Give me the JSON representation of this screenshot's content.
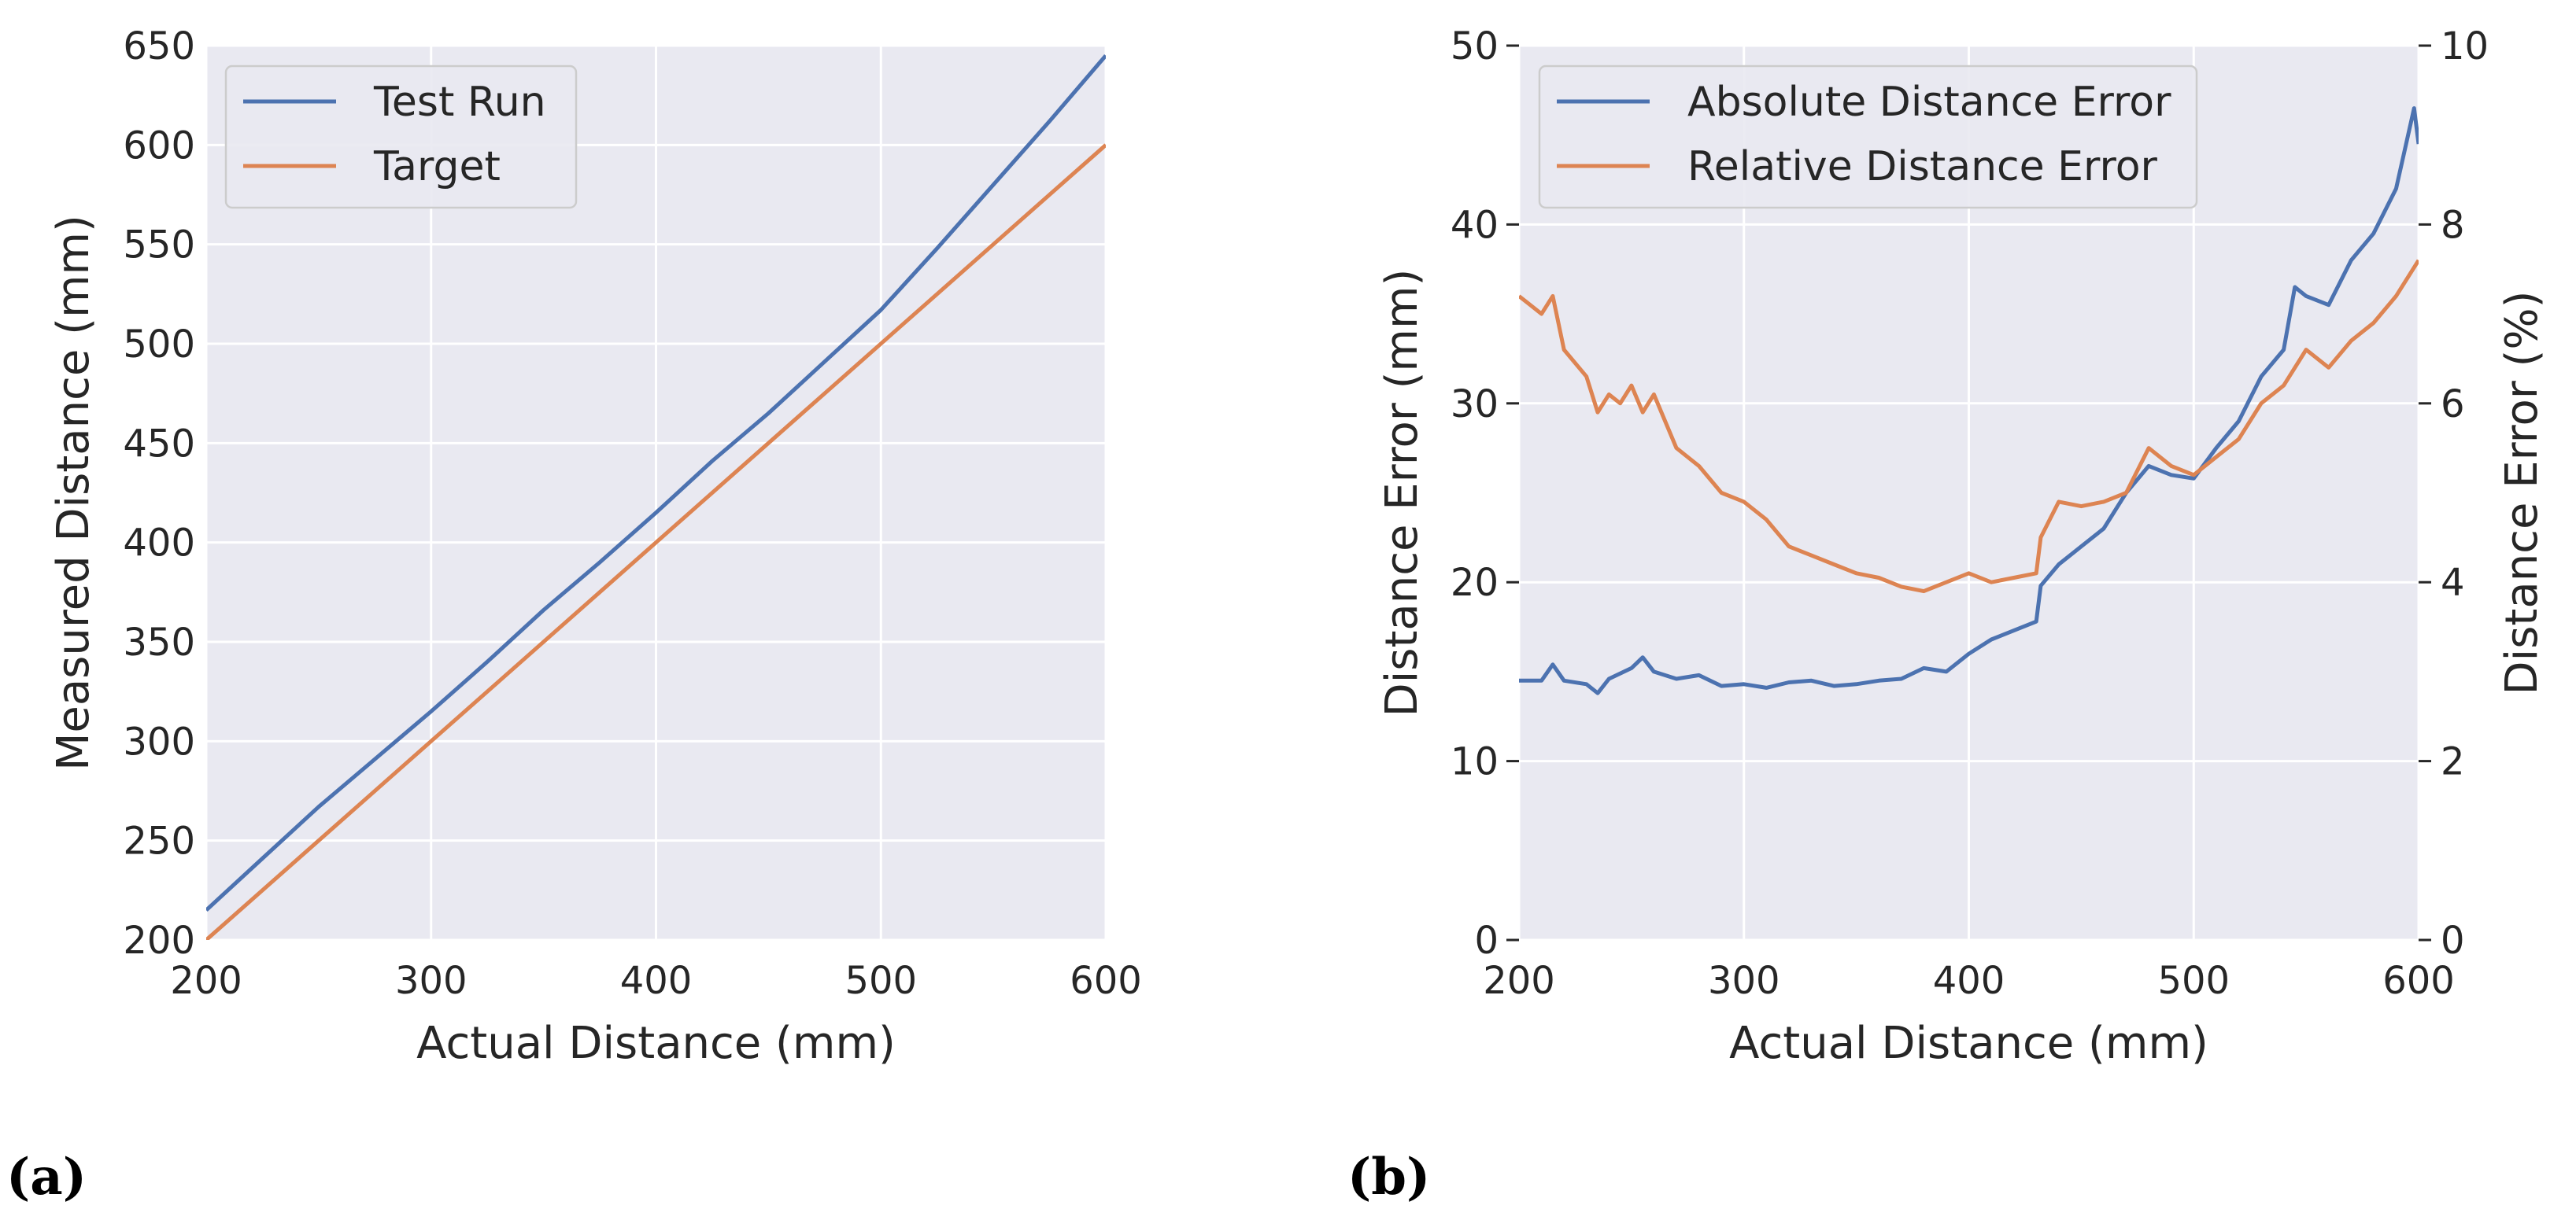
{
  "colors": {
    "background": "#e9e9f1",
    "grid": "#ffffff",
    "blue": "#4c72b0",
    "orange": "#dd8452"
  },
  "panel_labels": {
    "a": "(a)",
    "b": "(b)"
  },
  "chart_data": [
    {
      "id": "a",
      "type": "line",
      "xlabel": "Actual Distance (mm)",
      "ylabel": "Measured Distance (mm)",
      "xlim": [
        200,
        600
      ],
      "ylim": [
        200,
        650
      ],
      "xticks": [
        "200",
        "300",
        "400",
        "500",
        "600"
      ],
      "yticks": [
        "200",
        "250",
        "300",
        "350",
        "400",
        "450",
        "500",
        "550",
        "600",
        "650"
      ],
      "legend_position": "upper-left",
      "series": [
        {
          "name": "Test Run",
          "color": "#4c72b0",
          "axis": "left",
          "x": [
            200,
            225,
            250,
            275,
            300,
            325,
            350,
            375,
            400,
            425,
            450,
            475,
            500,
            525,
            550,
            575,
            600
          ],
          "y": [
            215,
            241,
            267,
            291,
            315,
            340,
            366,
            390,
            415,
            441,
            465,
            491,
            517,
            548,
            580,
            612,
            645
          ]
        },
        {
          "name": "Target",
          "color": "#dd8452",
          "axis": "left",
          "x": [
            200,
            600
          ],
          "y": [
            200,
            600
          ]
        }
      ]
    },
    {
      "id": "b",
      "type": "line",
      "xlabel": "Actual Distance (mm)",
      "ylabel": "Distance Error (mm)",
      "ylabel_right": "Distance Error (%)",
      "xlim": [
        200,
        600
      ],
      "ylim": [
        0,
        50
      ],
      "ylim_right": [
        0,
        10
      ],
      "xticks": [
        "200",
        "300",
        "400",
        "500",
        "600"
      ],
      "yticks": [
        "0",
        "10",
        "20",
        "30",
        "40",
        "50"
      ],
      "yticks_right": [
        "0",
        "2",
        "4",
        "6",
        "8",
        "10"
      ],
      "legend_position": "upper-left",
      "series": [
        {
          "name": "Absolute Distance Error",
          "color": "#4c72b0",
          "axis": "left",
          "x": [
            200,
            210,
            215,
            220,
            230,
            235,
            240,
            250,
            255,
            260,
            270,
            280,
            290,
            300,
            310,
            320,
            330,
            340,
            350,
            360,
            370,
            380,
            390,
            400,
            410,
            420,
            430,
            432,
            440,
            450,
            460,
            470,
            480,
            490,
            500,
            510,
            520,
            530,
            540,
            545,
            550,
            560,
            570,
            580,
            590,
            598,
            600
          ],
          "y": [
            14.5,
            14.5,
            15.4,
            14.5,
            14.3,
            13.8,
            14.6,
            15.2,
            15.8,
            15.0,
            14.6,
            14.8,
            14.2,
            14.3,
            14.1,
            14.4,
            14.5,
            14.2,
            14.3,
            14.5,
            14.6,
            15.2,
            15.0,
            16.0,
            16.8,
            17.3,
            17.8,
            19.8,
            21.0,
            22.0,
            23.0,
            25.0,
            26.5,
            26.0,
            25.8,
            27.5,
            29.0,
            31.5,
            33.0,
            36.5,
            36.0,
            35.5,
            38.0,
            39.5,
            42.0,
            46.5,
            44.5
          ]
        },
        {
          "name": "Relative Distance Error",
          "color": "#dd8452",
          "axis": "right",
          "x": [
            200,
            205,
            210,
            215,
            220,
            230,
            235,
            240,
            245,
            250,
            255,
            260,
            270,
            280,
            290,
            300,
            310,
            320,
            330,
            340,
            350,
            360,
            370,
            380,
            390,
            400,
            410,
            420,
            430,
            432,
            440,
            450,
            460,
            470,
            480,
            490,
            500,
            510,
            520,
            530,
            540,
            550,
            560,
            570,
            580,
            590,
            600
          ],
          "y": [
            7.2,
            7.1,
            7.0,
            7.2,
            6.6,
            6.3,
            5.9,
            6.1,
            6.0,
            6.2,
            5.9,
            6.1,
            5.5,
            5.3,
            5.0,
            4.9,
            4.7,
            4.4,
            4.3,
            4.2,
            4.1,
            4.05,
            3.95,
            3.9,
            4.0,
            4.1,
            4.0,
            4.05,
            4.1,
            4.5,
            4.9,
            4.85,
            4.9,
            5.0,
            5.5,
            5.3,
            5.2,
            5.4,
            5.6,
            6.0,
            6.2,
            6.6,
            6.4,
            6.7,
            6.9,
            7.2,
            7.6
          ]
        }
      ]
    }
  ]
}
